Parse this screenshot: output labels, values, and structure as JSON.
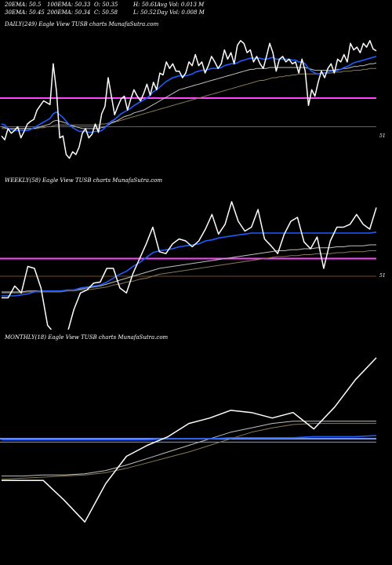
{
  "header": {
    "ema20": "20EMA: 50.5",
    "ema100": "100EMA: 50.33",
    "open": "O: 50.35",
    "high": "H: 50.61",
    "avgvol": "Avg Vol: 0.013 M",
    "ema30": "30EMA: 50.45",
    "ema200": "200EMA: 50.34",
    "close": "C: 50.58",
    "low": "L: 50.52",
    "dayvol": "Day Vol: 0.008 M"
  },
  "colors": {
    "price": "#ffffff",
    "ema_fast": "#1e5cff",
    "ema_slow": "#c0c0c0",
    "ema_slower": "#8a7a55",
    "support": "#ff44ff",
    "level": "#9a6a2a",
    "monthly_band": "#7a9cff"
  },
  "chart_data": [
    {
      "type": "line",
      "title": "DAILY(249) Eagle  View  TUSB charts MunafaSutra.com",
      "level_label": "51",
      "ylim": [
        49.55,
        51.05
      ],
      "support_level": 50.33,
      "level_line": 50.02,
      "series": [
        {
          "key": "price",
          "values": [
            49.92,
            49.88,
            50.0,
            49.95,
            49.98,
            50.02,
            49.9,
            49.97,
            50.05,
            50.08,
            50.1,
            50.2,
            50.25,
            50.3,
            50.28,
            50.26,
            50.7,
            50.4,
            49.9,
            49.92,
            49.72,
            49.68,
            49.75,
            49.72,
            49.8,
            49.95,
            50.0,
            49.9,
            49.94,
            50.05,
            49.96,
            50.16,
            50.24,
            50.55,
            50.35,
            50.15,
            50.24,
            50.32,
            50.35,
            50.2,
            50.32,
            50.42,
            50.35,
            50.3,
            50.38,
            50.48,
            50.36,
            50.5,
            50.42,
            50.6,
            50.58,
            50.72,
            50.65,
            50.7,
            50.62,
            50.62,
            50.55,
            50.6,
            50.72,
            50.68,
            50.8,
            50.68,
            50.72,
            50.6,
            50.68,
            50.78,
            50.72,
            50.65,
            50.7,
            50.85,
            50.75,
            50.82,
            50.7,
            50.9,
            50.95,
            50.92,
            50.82,
            50.85,
            50.72,
            50.78,
            50.7,
            50.65,
            50.78,
            50.92,
            50.82,
            50.62,
            50.75,
            50.78,
            50.72,
            50.75,
            50.7,
            50.72,
            50.6,
            50.75,
            50.62,
            50.25,
            50.42,
            50.35,
            50.5,
            50.62,
            50.55,
            50.65,
            50.7,
            50.6,
            50.75,
            50.72,
            50.8,
            50.72,
            50.92,
            50.85,
            50.88,
            50.82,
            50.92,
            50.88,
            50.95,
            50.86,
            50.84
          ]
        },
        {
          "key": "ema_fast",
          "values": [
            50.05,
            50.04,
            50.0,
            49.99,
            49.98,
            49.98,
            49.98,
            49.98,
            49.98,
            49.99,
            50.01,
            50.03,
            50.05,
            50.07,
            50.09,
            50.11,
            50.16,
            50.18,
            50.15,
            50.12,
            50.08,
            50.04,
            50.01,
            49.99,
            49.97,
            49.97,
            49.97,
            49.96,
            49.96,
            49.97,
            49.97,
            49.98,
            50.01,
            50.05,
            50.08,
            50.1,
            50.13,
            50.16,
            50.18,
            50.2,
            50.22,
            50.25,
            50.27,
            50.29,
            50.31,
            50.33,
            50.36,
            50.4,
            50.42,
            50.45,
            50.48,
            50.51,
            50.53,
            50.55,
            50.56,
            50.57,
            50.57,
            50.57,
            50.58,
            50.59,
            50.61,
            50.62,
            50.63,
            50.63,
            50.64,
            50.65,
            50.65,
            50.65,
            50.66,
            50.68,
            50.69,
            50.7,
            50.7,
            50.71,
            50.73,
            50.74,
            50.75,
            50.76,
            50.76,
            50.76,
            50.76,
            50.75,
            50.75,
            50.76,
            50.77,
            50.75,
            50.75,
            50.75,
            50.75,
            50.75,
            50.74,
            50.74,
            50.72,
            50.72,
            50.7,
            50.65,
            50.62,
            50.6,
            50.59,
            50.6,
            50.6,
            50.61,
            50.62,
            50.62,
            50.63,
            50.64,
            50.66,
            50.67,
            50.69,
            50.71,
            50.72,
            50.73,
            50.74,
            50.75,
            50.76,
            50.77,
            50.78
          ]
        },
        {
          "key": "ema_slow",
          "values": [
            50.02,
            50.01,
            50.0,
            50.0,
            50.0,
            50.0,
            50.0,
            50.0,
            50.0,
            50.0,
            50.0,
            50.01,
            50.02,
            50.03,
            50.04,
            50.05,
            50.08,
            50.09,
            50.08,
            50.07,
            50.06,
            50.04,
            50.03,
            50.02,
            50.01,
            50.0,
            50.0,
            50.0,
            50.0,
            50.0,
            50.0,
            50.01,
            50.02,
            50.04,
            50.06,
            50.07,
            50.09,
            50.11,
            50.13,
            50.14,
            50.15,
            50.17,
            50.18,
            50.19,
            50.2,
            50.22,
            50.24,
            50.26,
            50.28,
            50.3,
            50.32,
            50.34,
            50.36,
            50.38,
            50.4,
            50.42,
            50.43,
            50.44,
            50.45,
            50.46,
            50.47,
            50.48,
            50.49,
            50.5,
            50.51,
            50.52,
            50.53,
            50.54,
            50.55,
            50.56,
            50.57,
            50.58,
            50.59,
            50.6,
            50.61,
            50.62,
            50.63,
            50.64,
            50.64,
            50.65,
            50.65,
            50.65,
            50.65,
            50.66,
            50.66,
            50.66,
            50.66,
            50.66,
            50.66,
            50.66,
            50.66,
            50.66,
            50.66,
            50.66,
            50.66,
            50.65,
            50.64,
            50.63,
            50.63,
            50.63,
            50.63,
            50.63,
            50.63,
            50.63,
            50.64,
            50.64,
            50.65,
            50.65,
            50.66,
            50.67,
            50.67,
            50.68,
            50.68,
            50.69,
            50.7,
            50.7,
            50.71
          ]
        },
        {
          "key": "ema_slower",
          "values": [
            50.0,
            50.0,
            50.0,
            50.0,
            50.0,
            50.0,
            50.0,
            50.0,
            50.0,
            50.0,
            50.0,
            50.0,
            50.01,
            50.01,
            50.02,
            50.02,
            50.03,
            50.04,
            50.04,
            50.04,
            50.04,
            50.04,
            50.04,
            50.04,
            50.04,
            50.04,
            50.04,
            50.04,
            50.04,
            50.04,
            50.04,
            50.05,
            50.05,
            50.06,
            50.07,
            50.08,
            50.08,
            50.09,
            50.1,
            50.11,
            50.12,
            50.13,
            50.14,
            50.15,
            50.16,
            50.17,
            50.18,
            50.19,
            50.2,
            50.21,
            50.22,
            50.23,
            50.24,
            50.25,
            50.26,
            50.27,
            50.28,
            50.29,
            50.3,
            50.31,
            50.32,
            50.33,
            50.34,
            50.35,
            50.36,
            50.37,
            50.38,
            50.39,
            50.4,
            50.41,
            50.42,
            50.43,
            50.44,
            50.45,
            50.46,
            50.47,
            50.48,
            50.49,
            50.5,
            50.51,
            50.52,
            50.52,
            50.53,
            50.54,
            50.55,
            50.55,
            50.56,
            50.56,
            50.57,
            50.57,
            50.58,
            50.58,
            50.59,
            50.59,
            50.59,
            50.59,
            50.59,
            50.59,
            50.59,
            50.6,
            50.6,
            50.6,
            50.6,
            50.61,
            50.61,
            50.61,
            50.62,
            50.62,
            50.62,
            50.63,
            50.63,
            50.63,
            50.64,
            50.64,
            50.65,
            50.65,
            50.65
          ]
        }
      ]
    },
    {
      "type": "line",
      "title": "WEEKLY(58) Eagle  View  TUSB charts MunafaSutra.com",
      "level_label": "51",
      "ylim": [
        49.7,
        51.1
      ],
      "support_level": 50.4,
      "level_line": 50.22,
      "series": [
        {
          "key": "price",
          "values": [
            50.0,
            50.0,
            50.12,
            50.05,
            50.32,
            50.3,
            50.1,
            49.72,
            49.64,
            49.64,
            49.64,
            49.88,
            50.05,
            50.08,
            50.15,
            50.16,
            50.3,
            50.3,
            50.1,
            50.05,
            50.25,
            50.4,
            50.55,
            50.72,
            50.47,
            50.45,
            50.55,
            50.6,
            50.58,
            50.52,
            50.58,
            50.7,
            50.85,
            50.65,
            50.75,
            50.98,
            50.78,
            50.68,
            50.72,
            50.9,
            50.6,
            50.53,
            50.45,
            50.65,
            50.78,
            50.82,
            50.57,
            50.5,
            50.62,
            50.3,
            50.58,
            50.72,
            50.72,
            50.75,
            50.85,
            50.75,
            50.7,
            50.92
          ]
        },
        {
          "key": "ema_fast",
          "values": [
            50.02,
            50.02,
            50.02,
            50.03,
            50.04,
            50.06,
            50.07,
            50.07,
            50.07,
            50.07,
            50.08,
            50.08,
            50.1,
            50.11,
            50.12,
            50.13,
            50.16,
            50.2,
            50.24,
            50.27,
            50.32,
            50.36,
            50.41,
            50.46,
            50.48,
            50.49,
            50.5,
            50.52,
            50.53,
            50.54,
            50.55,
            50.58,
            50.59,
            50.61,
            50.62,
            50.63,
            50.64,
            50.65,
            50.66,
            50.66,
            50.66,
            50.66,
            50.66,
            50.66,
            50.66,
            50.66,
            50.66,
            50.66,
            50.66,
            50.66,
            50.66,
            50.66,
            50.66,
            50.66,
            50.66,
            50.66,
            50.66,
            50.67
          ]
        },
        {
          "key": "ema_slow",
          "values": [
            50.06,
            50.06,
            50.06,
            50.06,
            50.07,
            50.07,
            50.07,
            50.07,
            50.07,
            50.07,
            50.08,
            50.08,
            50.09,
            50.1,
            50.11,
            50.12,
            50.14,
            50.16,
            50.18,
            50.2,
            50.22,
            50.24,
            50.26,
            50.28,
            50.3,
            50.31,
            50.32,
            50.33,
            50.34,
            50.35,
            50.36,
            50.37,
            50.38,
            50.39,
            50.4,
            50.41,
            50.42,
            50.43,
            50.44,
            50.45,
            50.46,
            50.47,
            50.48,
            50.48,
            50.49,
            50.49,
            50.5,
            50.5,
            50.51,
            50.51,
            50.51,
            50.52,
            50.52,
            50.53,
            50.53,
            50.53,
            50.54,
            50.54
          ]
        },
        {
          "key": "ema_slower",
          "values": [
            50.05,
            50.05,
            50.05,
            50.05,
            50.06,
            50.06,
            50.06,
            50.06,
            50.06,
            50.06,
            50.07,
            50.07,
            50.08,
            50.08,
            50.09,
            50.1,
            50.11,
            50.13,
            50.14,
            50.16,
            50.17,
            50.19,
            50.2,
            50.22,
            50.24,
            50.25,
            50.26,
            50.27,
            50.28,
            50.29,
            50.3,
            50.31,
            50.32,
            50.33,
            50.34,
            50.35,
            50.36,
            50.37,
            50.38,
            50.39,
            50.4,
            50.41,
            50.42,
            50.42,
            50.43,
            50.43,
            50.44,
            50.44,
            50.45,
            50.45,
            50.45,
            50.46,
            50.46,
            50.47,
            50.47,
            50.47,
            50.48,
            50.48
          ]
        }
      ]
    },
    {
      "type": "line",
      "title": "MONTHLY(18) Eagle  View  TUSB charts MunafaSutra.com",
      "level_label": "",
      "ylim": [
        49.3,
        51.2
      ],
      "support_level": 50.36,
      "level_line": 50.33,
      "series": [
        {
          "key": "price",
          "values": [
            49.98,
            49.98,
            49.98,
            49.8,
            49.6,
            49.95,
            50.2,
            50.3,
            50.38,
            50.5,
            50.55,
            50.62,
            50.6,
            50.55,
            50.6,
            50.45,
            50.65,
            50.9,
            51.1
          ]
        },
        {
          "key": "ema_fast",
          "values": [
            50.35,
            50.35,
            50.35,
            50.35,
            50.35,
            50.35,
            50.35,
            50.35,
            50.36,
            50.36,
            50.36,
            50.37,
            50.37,
            50.37,
            50.37,
            50.38,
            50.38,
            50.38,
            50.39
          ]
        },
        {
          "key": "ema_slow",
          "values": [
            50.02,
            50.02,
            50.03,
            50.03,
            50.04,
            50.07,
            50.12,
            50.18,
            50.24,
            50.3,
            50.36,
            50.42,
            50.46,
            50.5,
            50.52,
            50.52,
            50.52,
            50.52,
            50.52
          ]
        },
        {
          "key": "ema_slower",
          "values": [
            49.99,
            50.0,
            50.01,
            50.02,
            50.03,
            50.05,
            50.09,
            50.14,
            50.19,
            50.24,
            50.3,
            50.36,
            50.42,
            50.46,
            50.49,
            50.5,
            50.5,
            50.5,
            50.5
          ]
        }
      ]
    }
  ]
}
